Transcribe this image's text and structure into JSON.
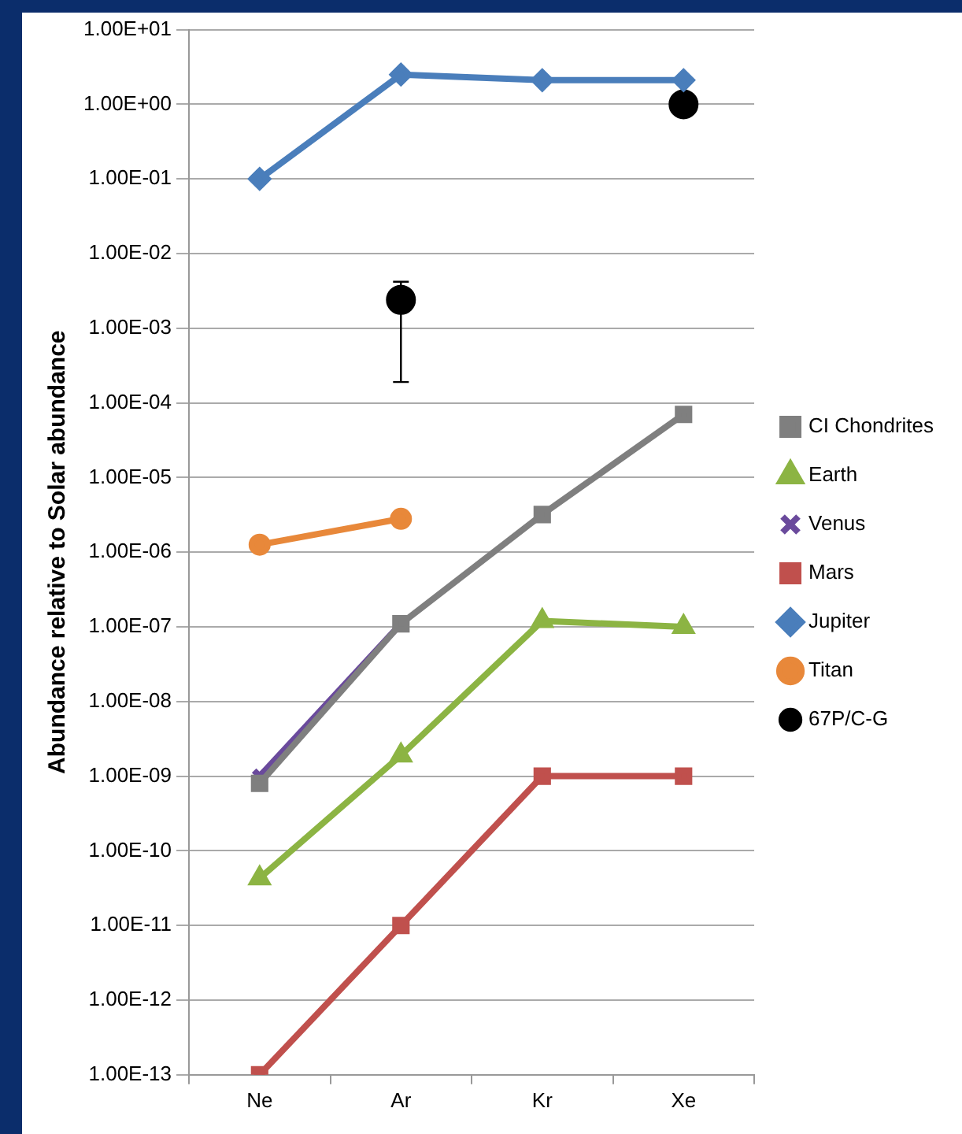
{
  "chart_data": {
    "type": "line",
    "ylabel": "Abundance relative to Solar abundance",
    "categories": [
      "Ne",
      "Ar",
      "Kr",
      "Xe"
    ],
    "log": true,
    "ylim": [
      1e-13,
      10
    ],
    "yticks": [
      {
        "value": 1e-13,
        "label": "1.00E-13"
      },
      {
        "value": 1e-12,
        "label": "1.00E-12"
      },
      {
        "value": 1e-11,
        "label": "1.00E-11"
      },
      {
        "value": 1e-10,
        "label": "1.00E-10"
      },
      {
        "value": 1e-09,
        "label": "1.00E-09"
      },
      {
        "value": 1e-08,
        "label": "1.00E-08"
      },
      {
        "value": 1e-07,
        "label": "1.00E-07"
      },
      {
        "value": 1e-06,
        "label": "1.00E-06"
      },
      {
        "value": 1e-05,
        "label": "1.00E-05"
      },
      {
        "value": 0.0001,
        "label": "1.00E-04"
      },
      {
        "value": 0.001,
        "label": "1.00E-03"
      },
      {
        "value": 0.01,
        "label": "1.00E-02"
      },
      {
        "value": 0.1,
        "label": "1.00E-01"
      },
      {
        "value": 1,
        "label": "1.00E+00"
      },
      {
        "value": 10,
        "label": "1.00E+01"
      }
    ],
    "grid": "y",
    "legend": "right",
    "series": [
      {
        "name": "CI Chondrites",
        "color": "#7f7f7f",
        "marker": "square",
        "values": [
          8e-10,
          1.1e-07,
          3.2e-06,
          7e-05
        ]
      },
      {
        "name": "Earth",
        "color": "#8cb443",
        "marker": "triangle",
        "values": [
          4.3e-11,
          1.9e-09,
          1.2e-07,
          1e-07
        ]
      },
      {
        "name": "Venus",
        "color": "#6a4a9c",
        "marker": "cross",
        "values": [
          1e-09,
          1.1e-07,
          null,
          null
        ]
      },
      {
        "name": "Mars",
        "color": "#c0504d",
        "marker": "square",
        "values": [
          1e-13,
          1e-11,
          1e-09,
          1e-09
        ]
      },
      {
        "name": "Jupiter",
        "color": "#4a7ebb",
        "marker": "diamond",
        "values": [
          0.1,
          2.5,
          2.1,
          2.1
        ]
      },
      {
        "name": "Titan",
        "color": "#e8883a",
        "marker": "circle",
        "values": [
          1.26e-06,
          2.8e-06,
          null,
          null
        ]
      },
      {
        "name": "67P/C-G",
        "color": "#000000",
        "type": "scatter",
        "marker": "circle",
        "values": [
          null,
          0.0024,
          null,
          1.0
        ],
        "errors": [
          null,
          [
            0.00019,
            0.0042
          ],
          null,
          null
        ]
      }
    ]
  }
}
